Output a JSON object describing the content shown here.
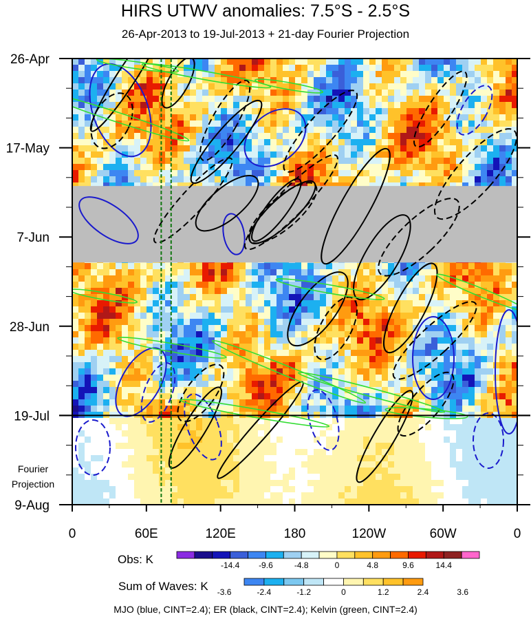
{
  "title": "HIRS UTWV anomalies: 7.5°S - 2.5°S",
  "subtitle": "26-Apr-2013 to 19-Jul-2013 + 21-day Fourier Projection",
  "projection_label": [
    "Fourier",
    "Projection"
  ],
  "caption": "MJO (blue, CINT=2.4); ER (black, CINT=2.4); Kelvin (green, CINT=2.4)",
  "colors": {
    "missing": "#bdbdbd",
    "mjo": "#1a1acc",
    "er": "#000000",
    "kelvin": "#33dd33",
    "marker_lines": "#117711"
  },
  "chart_data": {
    "type": "heatmap",
    "x": {
      "ticks": [
        "0",
        "60E",
        "120E",
        "180",
        "120W",
        "60W",
        "0"
      ],
      "tick_lon": [
        0,
        60,
        120,
        180,
        240,
        300,
        360
      ]
    },
    "y": {
      "ticks": [
        "26-Apr",
        "17-May",
        "7-Jun",
        "28-Jun",
        "19-Jul",
        "9-Aug"
      ],
      "tick_day": [
        0,
        21,
        42,
        63,
        84,
        105
      ],
      "reversed": true
    },
    "observed_period": [
      "26-Apr-2013",
      "19-Jul-2013"
    ],
    "projection_end": "9-Aug-2013",
    "vertical_markers_lon": [
      72,
      80
    ],
    "missing_band_days": [
      30,
      48
    ],
    "obs_colorbar": {
      "label": "Obs: K",
      "tick_labels": [
        "-14.4",
        "-9.6",
        "-4.8",
        "0",
        "4.8",
        "9.6",
        "14.4"
      ],
      "colors": [
        "#8a2be2",
        "#1a0d8c",
        "#1414b8",
        "#3a5fd9",
        "#3d86f2",
        "#1cb0f0",
        "#9fd0f2",
        "#d7f2f8",
        "#fffdc8",
        "#ffe060",
        "#ffc22a",
        "#ff9b10",
        "#ff6a00",
        "#e81a00",
        "#b01818",
        "#8e2222",
        "#ff66cc"
      ]
    },
    "waves_colorbar": {
      "label": "Sum of Waves: K",
      "tick_labels": [
        "-3.6",
        "-2.4",
        "-1.2",
        "0",
        "1.2",
        "2.4",
        "3.6"
      ],
      "colors": [
        "#3d86f2",
        "#1cb0f0",
        "#7cc8f0",
        "#bfe6f6",
        "#ffffff",
        "#fff5b0",
        "#ffe060",
        "#ffc22a",
        "#ff9b10"
      ]
    },
    "wave_contours": [
      {
        "wave": "MJO",
        "cint": 2.4,
        "color": "blue"
      },
      {
        "wave": "ER",
        "cint": 2.4,
        "color": "black"
      },
      {
        "wave": "Kelvin",
        "cint": 2.4,
        "color": "green"
      }
    ]
  }
}
